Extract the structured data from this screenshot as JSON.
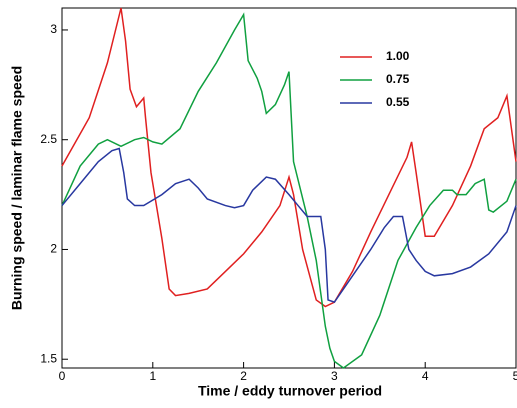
{
  "chart_data": {
    "type": "line",
    "x_label": "Time / eddy turnover period",
    "y_label": "Burning speed / laminar flame speed",
    "xlim": [
      0,
      5
    ],
    "ylim": [
      1.46,
      3.1
    ],
    "xticks": [
      0,
      1,
      2,
      3,
      4,
      5
    ],
    "yticks": [
      1.5,
      2,
      2.5,
      3
    ],
    "legend": "upper right",
    "series": [
      {
        "name": "1.00",
        "color": "#e02020",
        "x": [
          0,
          0.3,
          0.5,
          0.65,
          0.7,
          0.75,
          0.82,
          0.9,
          0.92,
          0.98,
          1.1,
          1.18,
          1.25,
          1.4,
          1.6,
          1.8,
          2.0,
          2.2,
          2.4,
          2.5,
          2.55,
          2.65,
          2.8,
          2.9,
          3.0,
          3.2,
          3.4,
          3.6,
          3.8,
          3.85,
          3.9,
          4.0,
          4.1,
          4.3,
          4.5,
          4.65,
          4.8,
          4.9,
          4.95,
          5.0
        ],
        "values": [
          2.38,
          2.6,
          2.85,
          3.1,
          2.95,
          2.73,
          2.65,
          2.69,
          2.6,
          2.35,
          2.05,
          1.82,
          1.79,
          1.8,
          1.82,
          1.9,
          1.98,
          2.08,
          2.2,
          2.33,
          2.25,
          2.0,
          1.77,
          1.74,
          1.76,
          1.9,
          2.08,
          2.25,
          2.42,
          2.49,
          2.35,
          2.06,
          2.06,
          2.2,
          2.38,
          2.55,
          2.6,
          2.7,
          2.55,
          2.4
        ]
      },
      {
        "name": "0.75",
        "color": "#10a040",
        "x": [
          0,
          0.2,
          0.4,
          0.5,
          0.65,
          0.8,
          0.9,
          1.0,
          1.1,
          1.3,
          1.5,
          1.7,
          1.9,
          2.0,
          2.05,
          2.15,
          2.2,
          2.25,
          2.35,
          2.45,
          2.5,
          2.55,
          2.7,
          2.8,
          2.9,
          2.95,
          3.0,
          3.1,
          3.3,
          3.5,
          3.7,
          3.9,
          4.05,
          4.2,
          4.3,
          4.35,
          4.45,
          4.55,
          4.65,
          4.7,
          4.75,
          4.9,
          5.0
        ],
        "values": [
          2.2,
          2.38,
          2.48,
          2.5,
          2.47,
          2.5,
          2.51,
          2.49,
          2.48,
          2.55,
          2.72,
          2.85,
          3.0,
          3.07,
          2.86,
          2.78,
          2.72,
          2.62,
          2.66,
          2.75,
          2.81,
          2.4,
          2.15,
          1.95,
          1.65,
          1.55,
          1.49,
          1.46,
          1.52,
          1.7,
          1.95,
          2.1,
          2.2,
          2.27,
          2.27,
          2.25,
          2.25,
          2.3,
          2.32,
          2.18,
          2.17,
          2.22,
          2.32
        ]
      },
      {
        "name": "0.55",
        "color": "#2838a0",
        "x": [
          0,
          0.2,
          0.4,
          0.55,
          0.63,
          0.68,
          0.72,
          0.8,
          0.9,
          1.1,
          1.25,
          1.4,
          1.5,
          1.6,
          1.8,
          1.9,
          2.0,
          2.1,
          2.25,
          2.35,
          2.5,
          2.6,
          2.7,
          2.85,
          2.9,
          2.93,
          3.0,
          3.2,
          3.4,
          3.55,
          3.65,
          3.75,
          3.82,
          3.9,
          4.0,
          4.1,
          4.3,
          4.5,
          4.7,
          4.9,
          5.0
        ],
        "values": [
          2.2,
          2.3,
          2.4,
          2.45,
          2.46,
          2.35,
          2.23,
          2.2,
          2.2,
          2.25,
          2.3,
          2.32,
          2.28,
          2.23,
          2.2,
          2.19,
          2.2,
          2.27,
          2.33,
          2.32,
          2.25,
          2.2,
          2.15,
          2.15,
          2.0,
          1.77,
          1.76,
          1.88,
          2.0,
          2.1,
          2.15,
          2.15,
          2.0,
          1.95,
          1.9,
          1.88,
          1.89,
          1.92,
          1.98,
          2.08,
          2.2
        ]
      }
    ]
  }
}
